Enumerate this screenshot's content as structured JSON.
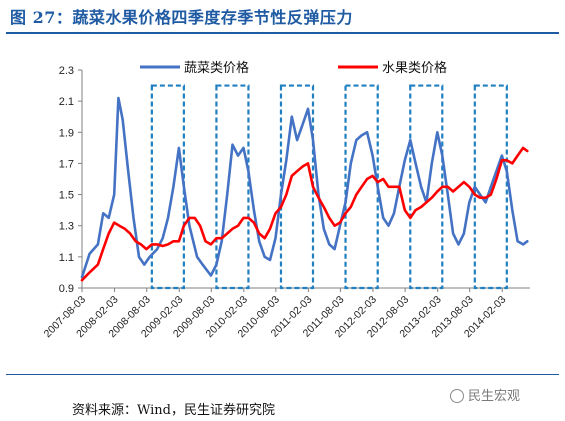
{
  "title": "图 27：蔬菜水果价格四季度存季节性反弹压力",
  "source": "资料来源：Wind，民生证券研究院",
  "watermark": "民生宏观",
  "colors": {
    "title": "#1f5ba3",
    "vegetable": "#4472c4",
    "fruit": "#ff0000",
    "highlight_box": "#1f7fc0"
  },
  "chart_data": {
    "type": "line",
    "ylim": [
      0.9,
      2.3
    ],
    "yticks": [
      "0.9",
      "1.1",
      "1.3",
      "1.5",
      "1.7",
      "1.9",
      "2.1",
      "2.3"
    ],
    "xticks": [
      "2007-08-03",
      "2008-02-03",
      "2008-08-03",
      "2009-02-03",
      "2009-08-03",
      "2010-02-03",
      "2010-08-03",
      "2011-02-03",
      "2011-08-03",
      "2012-02-03",
      "2012-08-03",
      "2013-02-03",
      "2013-08-03",
      "2014-02-03"
    ],
    "series": [
      {
        "name": "蔬菜类价格",
        "points": [
          [
            "2007-08-03",
            0.97
          ],
          [
            "2007-09-15",
            1.12
          ],
          [
            "2007-11-01",
            1.18
          ],
          [
            "2007-12-01",
            1.38
          ],
          [
            "2008-01-01",
            1.35
          ],
          [
            "2008-02-01",
            1.5
          ],
          [
            "2008-02-25",
            2.12
          ],
          [
            "2008-03-20",
            1.98
          ],
          [
            "2008-04-20",
            1.65
          ],
          [
            "2008-05-20",
            1.35
          ],
          [
            "2008-06-20",
            1.1
          ],
          [
            "2008-07-20",
            1.05
          ],
          [
            "2008-08-20",
            1.1
          ],
          [
            "2008-10-01",
            1.15
          ],
          [
            "2008-11-01",
            1.22
          ],
          [
            "2008-12-01",
            1.35
          ],
          [
            "2009-01-01",
            1.55
          ],
          [
            "2009-02-01",
            1.8
          ],
          [
            "2009-03-01",
            1.55
          ],
          [
            "2009-04-01",
            1.3
          ],
          [
            "2009-05-15",
            1.1
          ],
          [
            "2009-06-15",
            1.05
          ],
          [
            "2009-08-01",
            0.98
          ],
          [
            "2009-09-01",
            1.05
          ],
          [
            "2009-10-01",
            1.2
          ],
          [
            "2009-11-01",
            1.5
          ],
          [
            "2009-12-01",
            1.82
          ],
          [
            "2010-01-01",
            1.75
          ],
          [
            "2010-02-01",
            1.8
          ],
          [
            "2010-03-01",
            1.65
          ],
          [
            "2010-04-01",
            1.4
          ],
          [
            "2010-05-01",
            1.2
          ],
          [
            "2010-06-01",
            1.1
          ],
          [
            "2010-07-01",
            1.08
          ],
          [
            "2010-08-01",
            1.22
          ],
          [
            "2010-09-01",
            1.5
          ],
          [
            "2010-10-01",
            1.72
          ],
          [
            "2010-11-01",
            2.0
          ],
          [
            "2010-12-01",
            1.85
          ],
          [
            "2011-01-01",
            1.95
          ],
          [
            "2011-02-01",
            2.05
          ],
          [
            "2011-03-01",
            1.85
          ],
          [
            "2011-04-01",
            1.5
          ],
          [
            "2011-05-01",
            1.28
          ],
          [
            "2011-06-01",
            1.18
          ],
          [
            "2011-07-01",
            1.15
          ],
          [
            "2011-08-01",
            1.3
          ],
          [
            "2011-09-01",
            1.45
          ],
          [
            "2011-10-01",
            1.7
          ],
          [
            "2011-11-01",
            1.85
          ],
          [
            "2011-12-01",
            1.88
          ],
          [
            "2012-01-01",
            1.9
          ],
          [
            "2012-02-01",
            1.75
          ],
          [
            "2012-03-01",
            1.55
          ],
          [
            "2012-04-01",
            1.35
          ],
          [
            "2012-05-01",
            1.3
          ],
          [
            "2012-06-01",
            1.38
          ],
          [
            "2012-07-01",
            1.55
          ],
          [
            "2012-08-01",
            1.72
          ],
          [
            "2012-09-01",
            1.85
          ],
          [
            "2012-10-01",
            1.7
          ],
          [
            "2012-11-01",
            1.55
          ],
          [
            "2012-12-01",
            1.45
          ],
          [
            "2013-01-01",
            1.7
          ],
          [
            "2013-02-01",
            1.9
          ],
          [
            "2013-03-01",
            1.75
          ],
          [
            "2013-04-01",
            1.5
          ],
          [
            "2013-05-01",
            1.25
          ],
          [
            "2013-06-01",
            1.18
          ],
          [
            "2013-07-01",
            1.25
          ],
          [
            "2013-08-01",
            1.45
          ],
          [
            "2013-09-01",
            1.55
          ],
          [
            "2013-10-01",
            1.5
          ],
          [
            "2013-11-01",
            1.45
          ],
          [
            "2013-12-01",
            1.55
          ],
          [
            "2014-01-01",
            1.65
          ],
          [
            "2014-02-01",
            1.75
          ],
          [
            "2014-03-01",
            1.65
          ],
          [
            "2014-04-01",
            1.4
          ],
          [
            "2014-05-01",
            1.2
          ],
          [
            "2014-06-01",
            1.18
          ],
          [
            "2014-06-25",
            1.2
          ]
        ]
      },
      {
        "name": "水果类价格",
        "points": [
          [
            "2007-08-03",
            0.95
          ],
          [
            "2007-09-15",
            1.0
          ],
          [
            "2007-11-01",
            1.05
          ],
          [
            "2007-12-01",
            1.15
          ],
          [
            "2008-01-01",
            1.25
          ],
          [
            "2008-02-01",
            1.32
          ],
          [
            "2008-03-01",
            1.3
          ],
          [
            "2008-04-01",
            1.28
          ],
          [
            "2008-05-01",
            1.25
          ],
          [
            "2008-06-01",
            1.2
          ],
          [
            "2008-07-01",
            1.18
          ],
          [
            "2008-08-01",
            1.15
          ],
          [
            "2008-09-01",
            1.18
          ],
          [
            "2008-10-01",
            1.18
          ],
          [
            "2008-11-01",
            1.17
          ],
          [
            "2008-12-01",
            1.18
          ],
          [
            "2009-01-01",
            1.2
          ],
          [
            "2009-02-01",
            1.2
          ],
          [
            "2009-03-01",
            1.3
          ],
          [
            "2009-04-01",
            1.35
          ],
          [
            "2009-05-01",
            1.35
          ],
          [
            "2009-06-01",
            1.3
          ],
          [
            "2009-07-01",
            1.2
          ],
          [
            "2009-08-01",
            1.18
          ],
          [
            "2009-09-01",
            1.22
          ],
          [
            "2009-10-01",
            1.22
          ],
          [
            "2009-11-01",
            1.25
          ],
          [
            "2009-12-01",
            1.28
          ],
          [
            "2010-01-01",
            1.3
          ],
          [
            "2010-02-01",
            1.35
          ],
          [
            "2010-03-01",
            1.35
          ],
          [
            "2010-04-01",
            1.32
          ],
          [
            "2010-05-01",
            1.25
          ],
          [
            "2010-06-01",
            1.22
          ],
          [
            "2010-07-01",
            1.28
          ],
          [
            "2010-08-01",
            1.38
          ],
          [
            "2010-09-01",
            1.42
          ],
          [
            "2010-10-01",
            1.5
          ],
          [
            "2010-11-01",
            1.62
          ],
          [
            "2010-12-01",
            1.65
          ],
          [
            "2011-01-01",
            1.68
          ],
          [
            "2011-02-01",
            1.7
          ],
          [
            "2011-03-01",
            1.55
          ],
          [
            "2011-04-01",
            1.48
          ],
          [
            "2011-05-01",
            1.42
          ],
          [
            "2011-06-01",
            1.35
          ],
          [
            "2011-07-01",
            1.3
          ],
          [
            "2011-08-01",
            1.32
          ],
          [
            "2011-09-01",
            1.38
          ],
          [
            "2011-10-01",
            1.42
          ],
          [
            "2011-11-01",
            1.5
          ],
          [
            "2011-12-01",
            1.55
          ],
          [
            "2012-01-01",
            1.6
          ],
          [
            "2012-02-01",
            1.62
          ],
          [
            "2012-03-01",
            1.58
          ],
          [
            "2012-04-01",
            1.6
          ],
          [
            "2012-05-01",
            1.55
          ],
          [
            "2012-06-01",
            1.55
          ],
          [
            "2012-07-01",
            1.55
          ],
          [
            "2012-08-01",
            1.4
          ],
          [
            "2012-09-01",
            1.35
          ],
          [
            "2012-10-01",
            1.4
          ],
          [
            "2012-11-01",
            1.42
          ],
          [
            "2012-12-01",
            1.45
          ],
          [
            "2013-01-01",
            1.48
          ],
          [
            "2013-02-01",
            1.52
          ],
          [
            "2013-03-01",
            1.55
          ],
          [
            "2013-04-01",
            1.55
          ],
          [
            "2013-05-01",
            1.52
          ],
          [
            "2013-06-01",
            1.55
          ],
          [
            "2013-07-01",
            1.58
          ],
          [
            "2013-08-01",
            1.55
          ],
          [
            "2013-09-01",
            1.5
          ],
          [
            "2013-10-01",
            1.48
          ],
          [
            "2013-11-01",
            1.48
          ],
          [
            "2013-12-01",
            1.5
          ],
          [
            "2014-01-01",
            1.6
          ],
          [
            "2014-02-01",
            1.72
          ],
          [
            "2014-03-01",
            1.72
          ],
          [
            "2014-04-01",
            1.7
          ],
          [
            "2014-05-01",
            1.75
          ],
          [
            "2014-06-01",
            1.8
          ],
          [
            "2014-06-25",
            1.78
          ]
        ]
      }
    ],
    "highlight_periods": [
      [
        "2008-09-01",
        "2009-03-01"
      ],
      [
        "2009-09-01",
        "2010-03-01"
      ],
      [
        "2010-09-01",
        "2011-03-01"
      ],
      [
        "2011-09-01",
        "2012-03-01"
      ],
      [
        "2012-09-01",
        "2013-03-01"
      ],
      [
        "2013-09-01",
        "2014-03-01"
      ]
    ],
    "highlight_ylim": [
      0.9,
      2.2
    ],
    "grid": false,
    "legend_position": "top"
  }
}
